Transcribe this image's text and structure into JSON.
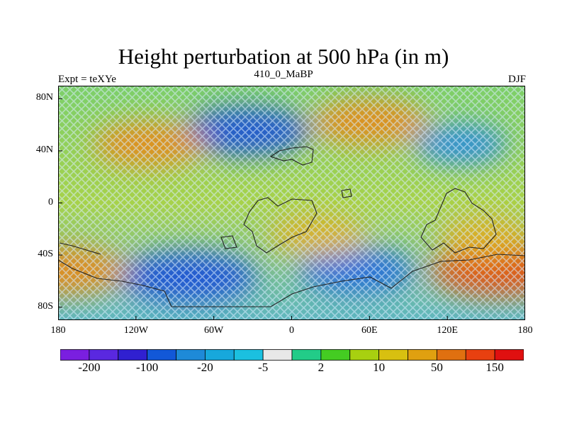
{
  "title": "Height perturbation at 500 hPa (in m)",
  "subtitle_left": "Expt = teXYe",
  "subtitle_center": "410_0_MaBP",
  "subtitle_right": "DJF",
  "axes": {
    "x_ticks": [
      {
        "lon": -180,
        "label": "180"
      },
      {
        "lon": -120,
        "label": "120W"
      },
      {
        "lon": -60,
        "label": "60W"
      },
      {
        "lon": 0,
        "label": "0"
      },
      {
        "lon": 60,
        "label": "60E"
      },
      {
        "lon": 120,
        "label": "120E"
      },
      {
        "lon": 180,
        "label": "180"
      }
    ],
    "y_ticks": [
      {
        "lat": 80,
        "label": "80N"
      },
      {
        "lat": 40,
        "label": "40N"
      },
      {
        "lat": 0,
        "label": "0"
      },
      {
        "lat": -40,
        "label": "40S"
      },
      {
        "lat": -80,
        "label": "80S"
      }
    ],
    "xlim": [
      -180,
      180
    ],
    "ylim": [
      -90,
      90
    ]
  },
  "colorbar": {
    "colors": [
      "#7a1fe0",
      "#5a28e0",
      "#3020d0",
      "#1258d8",
      "#1e8ad8",
      "#17a8dc",
      "#1bc0e0",
      "#e8e8e8",
      "#22cc88",
      "#44cc22",
      "#a8d010",
      "#d8c010",
      "#e0a010",
      "#e07010",
      "#e84010",
      "#e01010"
    ],
    "labels": [
      {
        "index": 1,
        "text": "-200"
      },
      {
        "index": 3,
        "text": "-100"
      },
      {
        "index": 5,
        "text": "-20"
      },
      {
        "index": 7,
        "text": "-5"
      },
      {
        "index": 9,
        "text": "2"
      },
      {
        "index": 11,
        "text": "10"
      },
      {
        "index": 13,
        "text": "50"
      },
      {
        "index": 15,
        "text": "150"
      }
    ]
  },
  "field": {
    "description_regions": [
      {
        "lon": -35,
        "lat": 55,
        "value": -60
      },
      {
        "lon": -80,
        "lat": -57,
        "value": -70
      },
      {
        "lon": 50,
        "lat": -52,
        "value": -45
      },
      {
        "lon": 130,
        "lat": 45,
        "value": -20
      },
      {
        "lon": -110,
        "lat": 45,
        "value": 40
      },
      {
        "lon": 60,
        "lat": 62,
        "value": 45
      },
      {
        "lon": 160,
        "lat": -52,
        "value": 70
      },
      {
        "lon": -175,
        "lat": -52,
        "value": 55
      },
      {
        "lon": 20,
        "lat": -25,
        "value": 25
      },
      {
        "lon": 150,
        "lat": -25,
        "value": 20
      }
    ]
  }
}
